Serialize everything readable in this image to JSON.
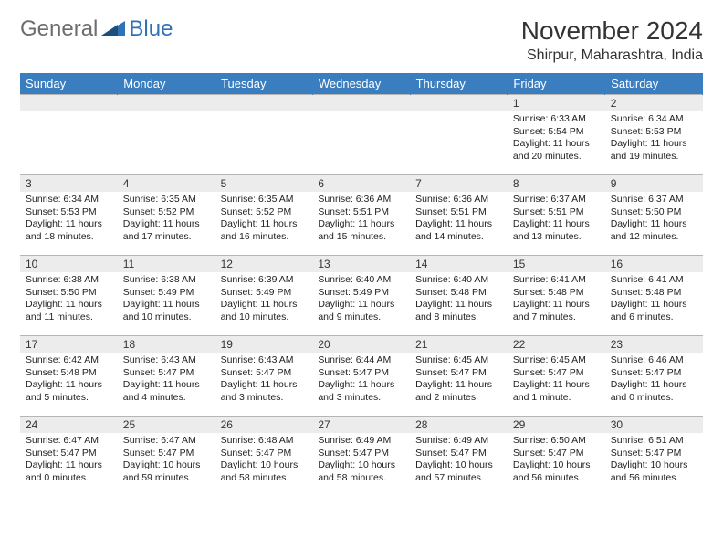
{
  "logo": {
    "word1": "General",
    "word2": "Blue"
  },
  "title": "November 2024",
  "location": "Shirpur, Maharashtra, India",
  "colors": {
    "header_bg": "#3a7ebf",
    "header_text": "#ffffff",
    "daynum_bg": "#ececec",
    "body_text": "#222222",
    "border": "#b5b5b5",
    "logo_general": "#6d6d6d",
    "logo_blue": "#2f72b6"
  },
  "typography": {
    "title_size_pt": 21,
    "location_size_pt": 12,
    "dayheader_size_pt": 10,
    "daynum_size_pt": 9,
    "daydata_size_pt": 8
  },
  "day_headers": [
    "Sunday",
    "Monday",
    "Tuesday",
    "Wednesday",
    "Thursday",
    "Friday",
    "Saturday"
  ],
  "weeks": [
    [
      {
        "n": "",
        "sunrise": "",
        "sunset": "",
        "daylight": ""
      },
      {
        "n": "",
        "sunrise": "",
        "sunset": "",
        "daylight": ""
      },
      {
        "n": "",
        "sunrise": "",
        "sunset": "",
        "daylight": ""
      },
      {
        "n": "",
        "sunrise": "",
        "sunset": "",
        "daylight": ""
      },
      {
        "n": "",
        "sunrise": "",
        "sunset": "",
        "daylight": ""
      },
      {
        "n": "1",
        "sunrise": "Sunrise: 6:33 AM",
        "sunset": "Sunset: 5:54 PM",
        "daylight": "Daylight: 11 hours and 20 minutes."
      },
      {
        "n": "2",
        "sunrise": "Sunrise: 6:34 AM",
        "sunset": "Sunset: 5:53 PM",
        "daylight": "Daylight: 11 hours and 19 minutes."
      }
    ],
    [
      {
        "n": "3",
        "sunrise": "Sunrise: 6:34 AM",
        "sunset": "Sunset: 5:53 PM",
        "daylight": "Daylight: 11 hours and 18 minutes."
      },
      {
        "n": "4",
        "sunrise": "Sunrise: 6:35 AM",
        "sunset": "Sunset: 5:52 PM",
        "daylight": "Daylight: 11 hours and 17 minutes."
      },
      {
        "n": "5",
        "sunrise": "Sunrise: 6:35 AM",
        "sunset": "Sunset: 5:52 PM",
        "daylight": "Daylight: 11 hours and 16 minutes."
      },
      {
        "n": "6",
        "sunrise": "Sunrise: 6:36 AM",
        "sunset": "Sunset: 5:51 PM",
        "daylight": "Daylight: 11 hours and 15 minutes."
      },
      {
        "n": "7",
        "sunrise": "Sunrise: 6:36 AM",
        "sunset": "Sunset: 5:51 PM",
        "daylight": "Daylight: 11 hours and 14 minutes."
      },
      {
        "n": "8",
        "sunrise": "Sunrise: 6:37 AM",
        "sunset": "Sunset: 5:51 PM",
        "daylight": "Daylight: 11 hours and 13 minutes."
      },
      {
        "n": "9",
        "sunrise": "Sunrise: 6:37 AM",
        "sunset": "Sunset: 5:50 PM",
        "daylight": "Daylight: 11 hours and 12 minutes."
      }
    ],
    [
      {
        "n": "10",
        "sunrise": "Sunrise: 6:38 AM",
        "sunset": "Sunset: 5:50 PM",
        "daylight": "Daylight: 11 hours and 11 minutes."
      },
      {
        "n": "11",
        "sunrise": "Sunrise: 6:38 AM",
        "sunset": "Sunset: 5:49 PM",
        "daylight": "Daylight: 11 hours and 10 minutes."
      },
      {
        "n": "12",
        "sunrise": "Sunrise: 6:39 AM",
        "sunset": "Sunset: 5:49 PM",
        "daylight": "Daylight: 11 hours and 10 minutes."
      },
      {
        "n": "13",
        "sunrise": "Sunrise: 6:40 AM",
        "sunset": "Sunset: 5:49 PM",
        "daylight": "Daylight: 11 hours and 9 minutes."
      },
      {
        "n": "14",
        "sunrise": "Sunrise: 6:40 AM",
        "sunset": "Sunset: 5:48 PM",
        "daylight": "Daylight: 11 hours and 8 minutes."
      },
      {
        "n": "15",
        "sunrise": "Sunrise: 6:41 AM",
        "sunset": "Sunset: 5:48 PM",
        "daylight": "Daylight: 11 hours and 7 minutes."
      },
      {
        "n": "16",
        "sunrise": "Sunrise: 6:41 AM",
        "sunset": "Sunset: 5:48 PM",
        "daylight": "Daylight: 11 hours and 6 minutes."
      }
    ],
    [
      {
        "n": "17",
        "sunrise": "Sunrise: 6:42 AM",
        "sunset": "Sunset: 5:48 PM",
        "daylight": "Daylight: 11 hours and 5 minutes."
      },
      {
        "n": "18",
        "sunrise": "Sunrise: 6:43 AM",
        "sunset": "Sunset: 5:47 PM",
        "daylight": "Daylight: 11 hours and 4 minutes."
      },
      {
        "n": "19",
        "sunrise": "Sunrise: 6:43 AM",
        "sunset": "Sunset: 5:47 PM",
        "daylight": "Daylight: 11 hours and 3 minutes."
      },
      {
        "n": "20",
        "sunrise": "Sunrise: 6:44 AM",
        "sunset": "Sunset: 5:47 PM",
        "daylight": "Daylight: 11 hours and 3 minutes."
      },
      {
        "n": "21",
        "sunrise": "Sunrise: 6:45 AM",
        "sunset": "Sunset: 5:47 PM",
        "daylight": "Daylight: 11 hours and 2 minutes."
      },
      {
        "n": "22",
        "sunrise": "Sunrise: 6:45 AM",
        "sunset": "Sunset: 5:47 PM",
        "daylight": "Daylight: 11 hours and 1 minute."
      },
      {
        "n": "23",
        "sunrise": "Sunrise: 6:46 AM",
        "sunset": "Sunset: 5:47 PM",
        "daylight": "Daylight: 11 hours and 0 minutes."
      }
    ],
    [
      {
        "n": "24",
        "sunrise": "Sunrise: 6:47 AM",
        "sunset": "Sunset: 5:47 PM",
        "daylight": "Daylight: 11 hours and 0 minutes."
      },
      {
        "n": "25",
        "sunrise": "Sunrise: 6:47 AM",
        "sunset": "Sunset: 5:47 PM",
        "daylight": "Daylight: 10 hours and 59 minutes."
      },
      {
        "n": "26",
        "sunrise": "Sunrise: 6:48 AM",
        "sunset": "Sunset: 5:47 PM",
        "daylight": "Daylight: 10 hours and 58 minutes."
      },
      {
        "n": "27",
        "sunrise": "Sunrise: 6:49 AM",
        "sunset": "Sunset: 5:47 PM",
        "daylight": "Daylight: 10 hours and 58 minutes."
      },
      {
        "n": "28",
        "sunrise": "Sunrise: 6:49 AM",
        "sunset": "Sunset: 5:47 PM",
        "daylight": "Daylight: 10 hours and 57 minutes."
      },
      {
        "n": "29",
        "sunrise": "Sunrise: 6:50 AM",
        "sunset": "Sunset: 5:47 PM",
        "daylight": "Daylight: 10 hours and 56 minutes."
      },
      {
        "n": "30",
        "sunrise": "Sunrise: 6:51 AM",
        "sunset": "Sunset: 5:47 PM",
        "daylight": "Daylight: 10 hours and 56 minutes."
      }
    ]
  ]
}
